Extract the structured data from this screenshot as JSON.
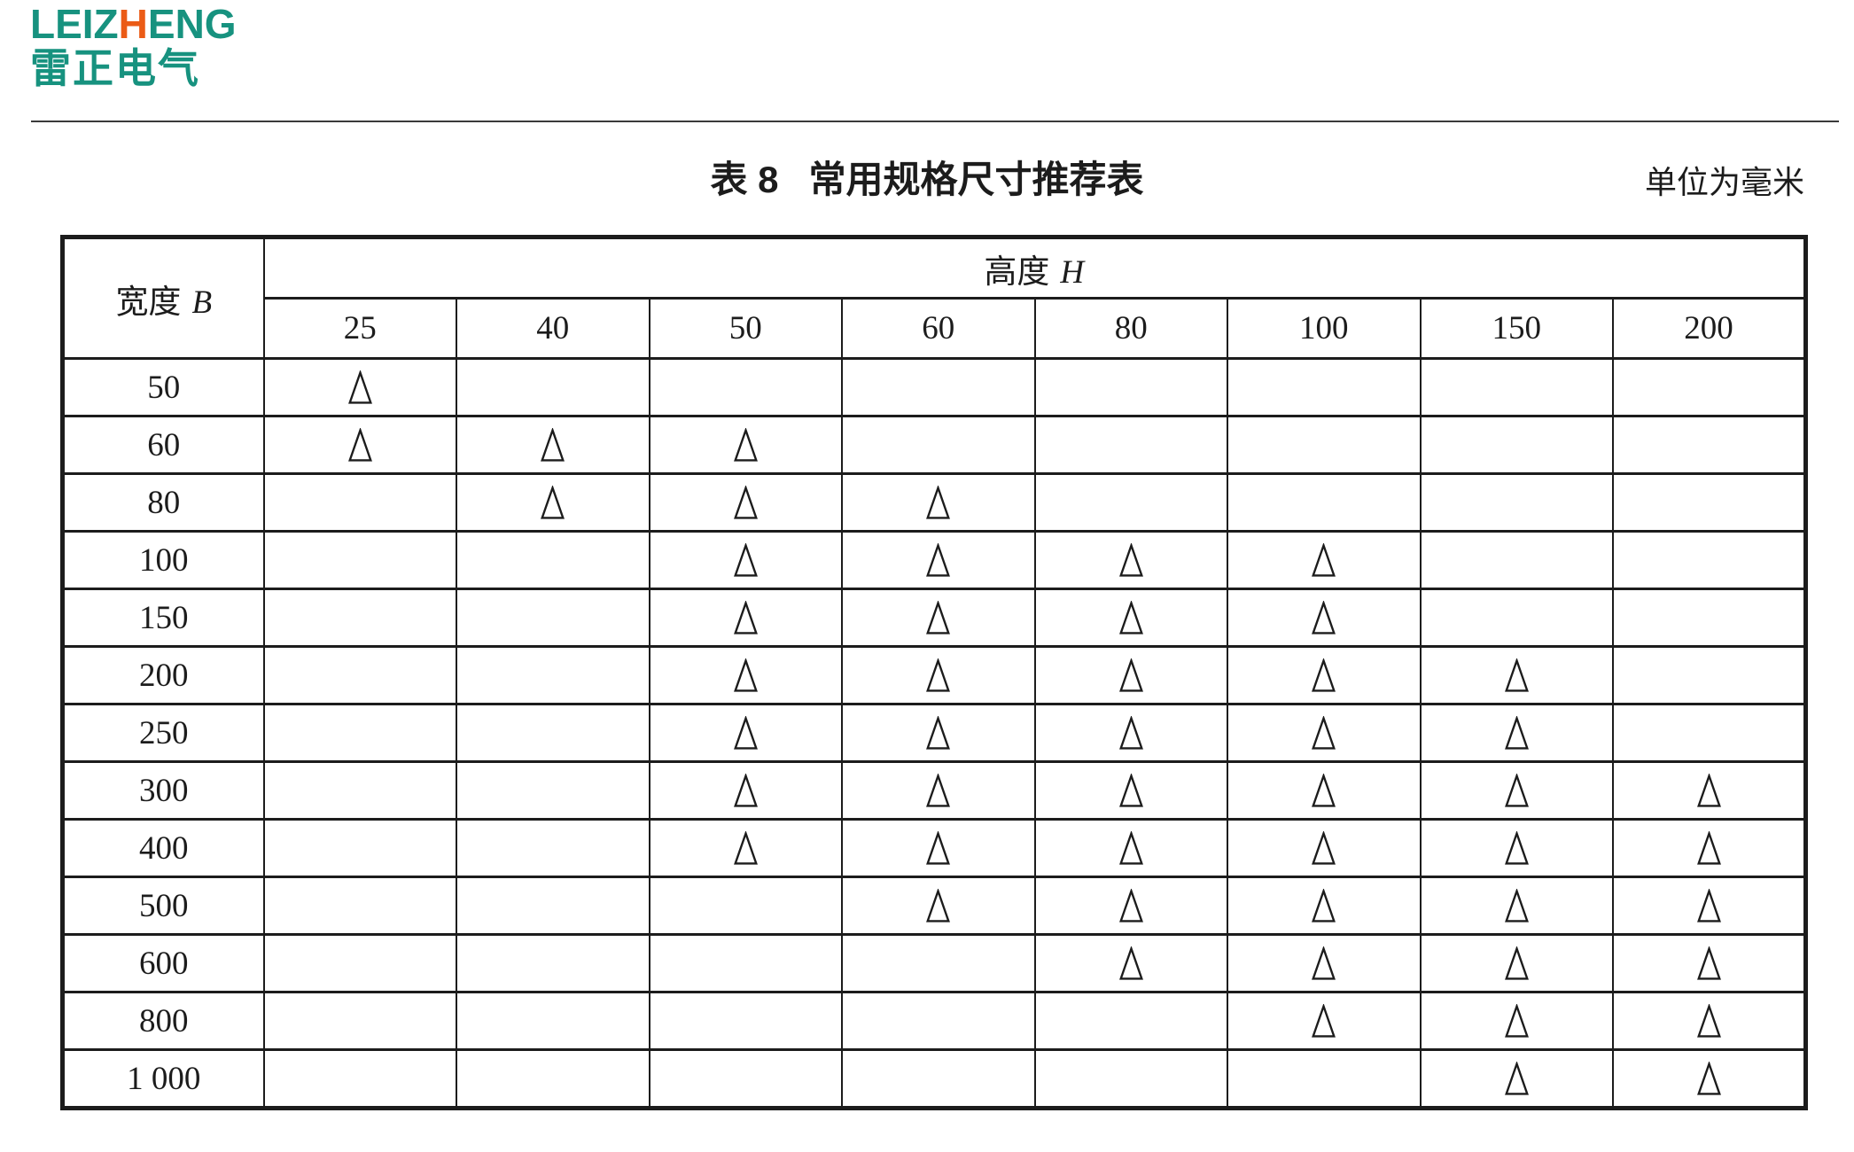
{
  "logo": {
    "latin_pre": "LEIZ",
    "latin_accent": "H",
    "latin_post": "ENG",
    "cjk": "雷正电气",
    "teal_color": "#17927F",
    "orange_color": "#EB5B16"
  },
  "caption": {
    "title_prefix": "表 8",
    "title_main": "常用规格尺寸推荐表",
    "unit_note": "单位为毫米"
  },
  "table": {
    "corner_label": "宽度",
    "corner_symbol": "B",
    "height_label": "高度",
    "height_symbol": "H",
    "mark_symbol": "△",
    "columns": [
      "25",
      "40",
      "50",
      "60",
      "80",
      "100",
      "150",
      "200"
    ],
    "rows": [
      {
        "width": "50",
        "marks": [
          1,
          0,
          0,
          0,
          0,
          0,
          0,
          0
        ]
      },
      {
        "width": "60",
        "marks": [
          1,
          1,
          1,
          0,
          0,
          0,
          0,
          0
        ]
      },
      {
        "width": "80",
        "marks": [
          0,
          1,
          1,
          1,
          0,
          0,
          0,
          0
        ]
      },
      {
        "width": "100",
        "marks": [
          0,
          0,
          1,
          1,
          1,
          1,
          0,
          0
        ]
      },
      {
        "width": "150",
        "marks": [
          0,
          0,
          1,
          1,
          1,
          1,
          0,
          0
        ]
      },
      {
        "width": "200",
        "marks": [
          0,
          0,
          1,
          1,
          1,
          1,
          1,
          0
        ]
      },
      {
        "width": "250",
        "marks": [
          0,
          0,
          1,
          1,
          1,
          1,
          1,
          0
        ]
      },
      {
        "width": "300",
        "marks": [
          0,
          0,
          1,
          1,
          1,
          1,
          1,
          1
        ]
      },
      {
        "width": "400",
        "marks": [
          0,
          0,
          1,
          1,
          1,
          1,
          1,
          1
        ]
      },
      {
        "width": "500",
        "marks": [
          0,
          0,
          0,
          1,
          1,
          1,
          1,
          1
        ]
      },
      {
        "width": "600",
        "marks": [
          0,
          0,
          0,
          0,
          1,
          1,
          1,
          1
        ]
      },
      {
        "width": "800",
        "marks": [
          0,
          0,
          0,
          0,
          0,
          1,
          1,
          1
        ]
      },
      {
        "width": "1 000",
        "marks": [
          0,
          0,
          0,
          0,
          0,
          0,
          1,
          1
        ]
      }
    ]
  }
}
